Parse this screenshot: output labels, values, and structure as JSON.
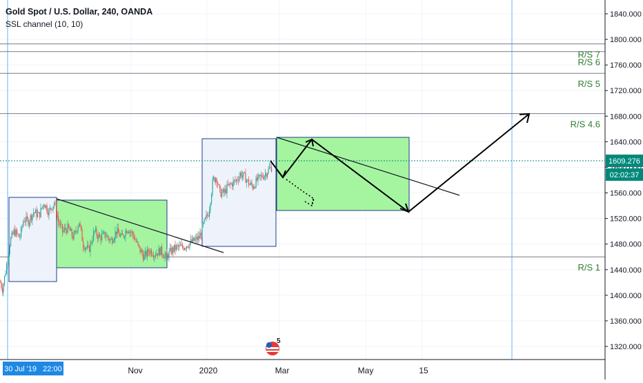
{
  "chart_data": {
    "type": "candlestick",
    "symbol_title": "Gold Spot / U.S. Dollar, 240, OANDA",
    "indicator": "SSL channel (10, 10)",
    "price_axis": {
      "ticks": [
        "1840.000",
        "1800.000",
        "1760.000",
        "1720.000",
        "1680.000",
        "1640.000",
        "1600.000",
        "1560.000",
        "1520.000",
        "1480.000",
        "1440.000",
        "1400.000",
        "1360.000",
        "1320.000"
      ],
      "ylim": [
        1305,
        1855
      ]
    },
    "time_axis": {
      "ticks": [
        "Nov",
        "2020",
        "Mar",
        "May",
        "15"
      ],
      "cursor_label": "30 Jul '19   22:00"
    },
    "current_price": {
      "price": "1609.276",
      "countdown": "02:02:37",
      "value": 1609.276
    },
    "levels": [
      {
        "label": "R/S 7",
        "price": 1793
      },
      {
        "label": "R/S 6",
        "price": 1781
      },
      {
        "label": "R/S 5",
        "price": 1747
      },
      {
        "label": "R/S 4.6",
        "price": 1684
      },
      {
        "label": "R/S 1",
        "price": 1460
      }
    ],
    "price_path": [
      [
        0,
        1420
      ],
      [
        3,
        1410
      ],
      [
        8,
        1440
      ],
      [
        14,
        1485
      ],
      [
        20,
        1500
      ],
      [
        28,
        1490
      ],
      [
        34,
        1520
      ],
      [
        40,
        1515
      ],
      [
        48,
        1530
      ],
      [
        56,
        1525
      ],
      [
        63,
        1545
      ],
      [
        70,
        1530
      ],
      [
        78,
        1545
      ],
      [
        84,
        1515
      ],
      [
        90,
        1500
      ],
      [
        98,
        1505
      ],
      [
        106,
        1490
      ],
      [
        114,
        1515
      ],
      [
        120,
        1480
      ],
      [
        128,
        1470
      ],
      [
        136,
        1500
      ],
      [
        144,
        1490
      ],
      [
        152,
        1495
      ],
      [
        160,
        1485
      ],
      [
        168,
        1500
      ],
      [
        176,
        1490
      ],
      [
        184,
        1505
      ],
      [
        192,
        1495
      ],
      [
        200,
        1475
      ],
      [
        208,
        1460
      ],
      [
        216,
        1470
      ],
      [
        224,
        1465
      ],
      [
        232,
        1470
      ],
      [
        240,
        1460
      ],
      [
        248,
        1470
      ],
      [
        256,
        1475
      ],
      [
        264,
        1475
      ],
      [
        272,
        1480
      ],
      [
        280,
        1485
      ],
      [
        288,
        1490
      ],
      [
        296,
        1515
      ],
      [
        302,
        1530
      ],
      [
        308,
        1580
      ],
      [
        313,
        1585
      ],
      [
        318,
        1560
      ],
      [
        324,
        1560
      ],
      [
        330,
        1570
      ],
      [
        336,
        1575
      ],
      [
        342,
        1580
      ],
      [
        348,
        1590
      ],
      [
        354,
        1585
      ],
      [
        360,
        1575
      ],
      [
        366,
        1570
      ],
      [
        372,
        1580
      ],
      [
        378,
        1585
      ],
      [
        384,
        1590
      ],
      [
        390,
        1598
      ],
      [
        394,
        1600
      ]
    ]
  },
  "badge": {
    "count": "5"
  },
  "colors": {
    "up": "#26a69a",
    "down": "#ef5350",
    "level": "#2e7d32",
    "price_line": "#00897b",
    "vertical": "#64b5f6",
    "box_blue_fill": "#eef3fb",
    "box_green_fill": "#a5f5a0"
  }
}
